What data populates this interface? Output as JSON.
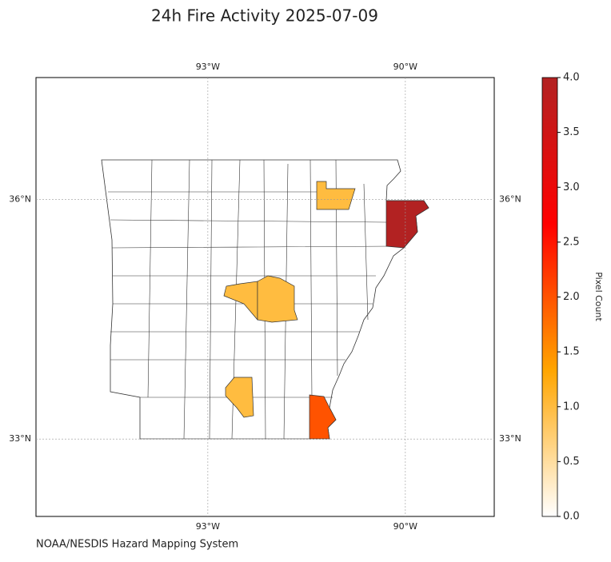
{
  "chart_data": {
    "type": "choropleth",
    "title": "24h Fire Activity 2025-07-09",
    "xlim": [
      -95.61,
      -88.65
    ],
    "ylim": [
      32.03,
      37.53
    ],
    "xticks": [
      {
        "value": -93,
        "label": "93°W"
      },
      {
        "value": -90,
        "label": "90°W"
      }
    ],
    "yticks": [
      {
        "value": 36,
        "label": "36°N"
      },
      {
        "value": 33,
        "label": "33°N"
      }
    ],
    "grid": true,
    "values": [
      1,
      1,
      1,
      1,
      4,
      2
    ],
    "colorbar": {
      "label": "Pixel Count",
      "clim": [
        0,
        4
      ],
      "colormap": [
        "#ffffff",
        "#ffa500",
        "#ff0000",
        "#b22222"
      ],
      "ticks": [
        {
          "value": 0,
          "label": "0.0"
        },
        {
          "value": 0.5,
          "label": "0.5"
        },
        {
          "value": 1,
          "label": "1.0"
        },
        {
          "value": 1.5,
          "label": "1.5"
        },
        {
          "value": 2,
          "label": "2.0"
        },
        {
          "value": 2.5,
          "label": "2.5"
        },
        {
          "value": 3,
          "label": "3.0"
        },
        {
          "value": 3.5,
          "label": "3.5"
        },
        {
          "value": 4,
          "label": "4.0"
        }
      ]
    },
    "source": "NOAA/NESDIS Hazard Mapping System"
  }
}
